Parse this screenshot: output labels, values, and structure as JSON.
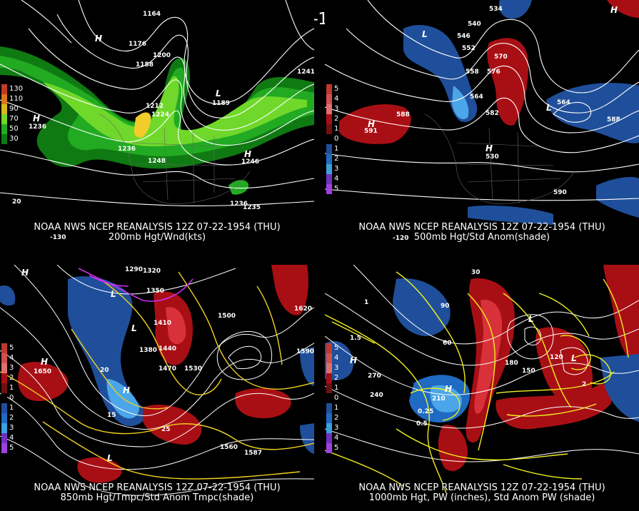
{
  "title": "12Z 07-22-1954 (THU)",
  "colors": {
    "wind_light": "#6fd82a",
    "wind_mid": "#22aa22",
    "wind_dark": "#0f7a12",
    "wind_max": "#f2cc2a",
    "anom_pos1": "#a80f14",
    "anom_pos2": "#d8313a",
    "anom_neg1": "#1f6ac2",
    "anom_neg2": "#4aa6e8",
    "contour": "#ffffff",
    "temp_contour": "#f0d020",
    "pw_contour": "#f0f020",
    "cold_temp": "#d030f0"
  },
  "panels": [
    {
      "id": "p1",
      "caption1": "NOAA NWS NCEP REANALYSIS 12Z 07-22-1954 (THU)",
      "caption2": "200mb Hgt/Wnd(kts)",
      "legend": [
        {
          "label": "130",
          "color": "#c0392b"
        },
        {
          "label": "110",
          "color": "#d9761a"
        },
        {
          "label": "90",
          "color": "#d9b81a"
        },
        {
          "label": "70",
          "color": "#6fd82a"
        },
        {
          "label": "50",
          "color": "#22aa22"
        },
        {
          "label": "30",
          "color": "#0f7a12"
        }
      ],
      "labels": [
        "1164",
        "1176",
        "1188",
        "1200",
        "1212",
        "1224",
        "1236",
        "1248",
        "1236",
        "1241",
        "1189",
        "1236",
        "1246",
        "1235",
        "20",
        "-130",
        "H",
        "L",
        "H",
        "H"
      ]
    },
    {
      "id": "p2",
      "caption1": "NOAA NWS NCEP REANALYSIS 12Z 07-22-1954 (THU)",
      "caption2": "500mb Hgt/Std Anom(shade)",
      "legend": [
        {
          "label": "5",
          "color": "#c0392b"
        },
        {
          "label": "4",
          "color": "#d05050"
        },
        {
          "label": "3",
          "color": "#e07070"
        },
        {
          "label": "2",
          "color": "#a80f14"
        },
        {
          "label": "1",
          "color": "#701010"
        },
        {
          "label": "0",
          "color": "#000000"
        },
        {
          "label": "1",
          "color": "#1f4f9a"
        },
        {
          "label": "2",
          "color": "#1f6ac2"
        },
        {
          "label": "3",
          "color": "#3aa0e0"
        },
        {
          "label": "4",
          "color": "#7030c0"
        },
        {
          "label": "5",
          "color": "#a040e0"
        }
      ],
      "labels": [
        "534",
        "540",
        "546",
        "552",
        "558",
        "564",
        "570",
        "576",
        "582",
        "588",
        "591",
        "564",
        "588",
        "530",
        "590",
        "-120",
        "H",
        "L",
        "L",
        "H",
        "H"
      ]
    },
    {
      "id": "p3",
      "caption1": "NOAA NWS NCEP REANALYSIS 12Z 07-22-1954 (THU)",
      "caption2": "850mb Hgt/Tmpc/Std Anom Tmpc(shade)",
      "legend": [
        {
          "label": "5",
          "color": "#c0392b"
        },
        {
          "label": "4",
          "color": "#d05050"
        },
        {
          "label": "3",
          "color": "#e07070"
        },
        {
          "label": "2",
          "color": "#a80f14"
        },
        {
          "label": "1",
          "color": "#701010"
        },
        {
          "label": "0",
          "color": "#000000"
        },
        {
          "label": "1",
          "color": "#1f4f9a"
        },
        {
          "label": "2",
          "color": "#1f6ac2"
        },
        {
          "label": "3",
          "color": "#3aa0e0"
        },
        {
          "label": "4",
          "color": "#7030c0"
        },
        {
          "label": "5",
          "color": "#a040e0"
        }
      ],
      "labels": [
        "1290",
        "1320",
        "1350",
        "1380",
        "1410",
        "1440",
        "1470",
        "1500",
        "1530",
        "1560",
        "1590",
        "1620",
        "1650",
        "1587",
        "15",
        "20",
        "25",
        "H",
        "L",
        "H",
        "L",
        "H",
        "L"
      ]
    },
    {
      "id": "p4",
      "caption1": "NOAA NWS NCEP REANALYSIS 12Z 07-22-1954 (THU)",
      "caption2": "1000mb Hgt, PW (inches), Std Anom PW (shade)",
      "legend": [
        {
          "label": "5",
          "color": "#c0392b"
        },
        {
          "label": "4",
          "color": "#d05050"
        },
        {
          "label": "3",
          "color": "#e07070"
        },
        {
          "label": "2",
          "color": "#a80f14"
        },
        {
          "label": "1",
          "color": "#701010"
        },
        {
          "label": "0",
          "color": "#000000"
        },
        {
          "label": "1",
          "color": "#1f4f9a"
        },
        {
          "label": "2",
          "color": "#1f6ac2"
        },
        {
          "label": "3",
          "color": "#3aa0e0"
        },
        {
          "label": "4",
          "color": "#7030c0"
        },
        {
          "label": "5",
          "color": "#a040e0"
        }
      ],
      "labels": [
        "30",
        "60",
        "90",
        "120",
        "150",
        "180",
        "210",
        "240",
        "270",
        "0.25",
        "0.5",
        "1",
        "1.5",
        "2",
        "H",
        "L",
        "H",
        "L"
      ]
    }
  ]
}
